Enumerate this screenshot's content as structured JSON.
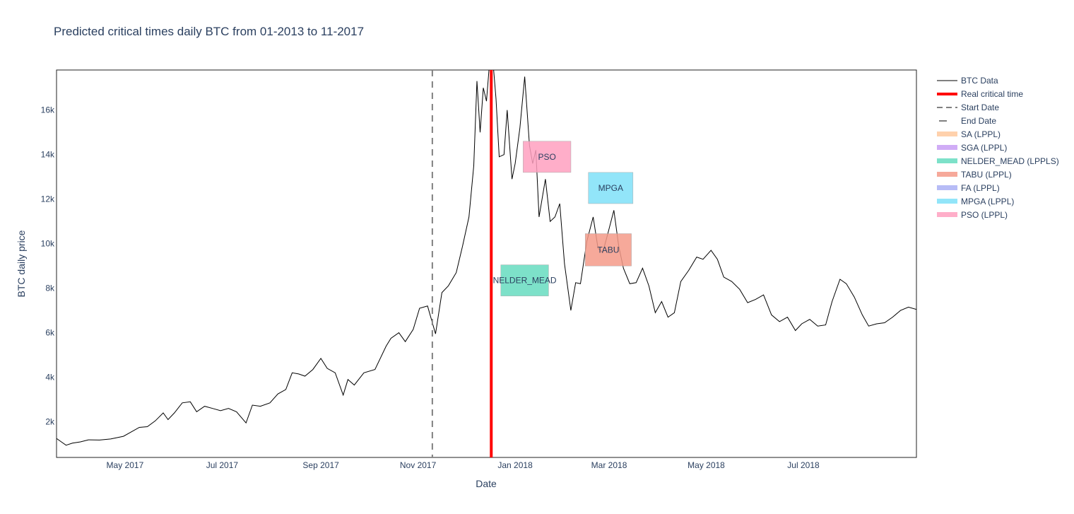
{
  "chart_data": {
    "type": "line",
    "title": "Predicted critical times daily BTC from 01-2013 to 11-2017",
    "xlabel": "Date",
    "ylabel": "BTC daily price",
    "xlim": [
      "2017-03-19",
      "2018-09-10"
    ],
    "ylim": [
      400,
      17800
    ],
    "x_ticks": [
      {
        "date": "2017-05-01",
        "label": "May 2017"
      },
      {
        "date": "2017-07-01",
        "label": "Jul 2017"
      },
      {
        "date": "2017-09-01",
        "label": "Sep 2017"
      },
      {
        "date": "2017-11-01",
        "label": "Nov 2017"
      },
      {
        "date": "2018-01-01",
        "label": "Jan 2018"
      },
      {
        "date": "2018-03-01",
        "label": "Mar 2018"
      },
      {
        "date": "2018-05-01",
        "label": "May 2018"
      },
      {
        "date": "2018-07-01",
        "label": "Jul 2018"
      }
    ],
    "y_ticks": [
      {
        "value": 2000,
        "label": "2k"
      },
      {
        "value": 4000,
        "label": "4k"
      },
      {
        "value": 6000,
        "label": "6k"
      },
      {
        "value": 8000,
        "label": "8k"
      },
      {
        "value": 10000,
        "label": "10k"
      },
      {
        "value": 12000,
        "label": "12k"
      },
      {
        "value": 14000,
        "label": "14k"
      },
      {
        "value": 16000,
        "label": "16k"
      }
    ],
    "series": [
      {
        "name": "BTC Data",
        "color": "#000000",
        "points": [
          [
            "2017-03-19",
            1250
          ],
          [
            "2017-03-22",
            1100
          ],
          [
            "2017-03-25",
            950
          ],
          [
            "2017-03-29",
            1040
          ],
          [
            "2017-04-03",
            1100
          ],
          [
            "2017-04-08",
            1190
          ],
          [
            "2017-04-15",
            1180
          ],
          [
            "2017-04-22",
            1230
          ],
          [
            "2017-04-30",
            1350
          ],
          [
            "2017-05-05",
            1550
          ],
          [
            "2017-05-10",
            1750
          ],
          [
            "2017-05-15",
            1780
          ],
          [
            "2017-05-20",
            2040
          ],
          [
            "2017-05-25",
            2400
          ],
          [
            "2017-05-28",
            2100
          ],
          [
            "2017-06-01",
            2400
          ],
          [
            "2017-06-06",
            2850
          ],
          [
            "2017-06-11",
            2900
          ],
          [
            "2017-06-15",
            2450
          ],
          [
            "2017-06-20",
            2700
          ],
          [
            "2017-06-25",
            2600
          ],
          [
            "2017-06-30",
            2500
          ],
          [
            "2017-07-05",
            2600
          ],
          [
            "2017-07-10",
            2450
          ],
          [
            "2017-07-16",
            1950
          ],
          [
            "2017-07-20",
            2750
          ],
          [
            "2017-07-25",
            2700
          ],
          [
            "2017-07-31",
            2850
          ],
          [
            "2017-08-05",
            3250
          ],
          [
            "2017-08-10",
            3450
          ],
          [
            "2017-08-14",
            4200
          ],
          [
            "2017-08-18",
            4150
          ],
          [
            "2017-08-22",
            4050
          ],
          [
            "2017-08-27",
            4350
          ],
          [
            "2017-09-01",
            4850
          ],
          [
            "2017-09-05",
            4400
          ],
          [
            "2017-09-10",
            4200
          ],
          [
            "2017-09-15",
            3200
          ],
          [
            "2017-09-18",
            3900
          ],
          [
            "2017-09-22",
            3650
          ],
          [
            "2017-09-28",
            4200
          ],
          [
            "2017-10-05",
            4350
          ],
          [
            "2017-10-12",
            5400
          ],
          [
            "2017-10-15",
            5750
          ],
          [
            "2017-10-20",
            6000
          ],
          [
            "2017-10-24",
            5600
          ],
          [
            "2017-10-29",
            6150
          ],
          [
            "2017-11-02",
            7100
          ],
          [
            "2017-11-07",
            7200
          ],
          [
            "2017-11-12",
            5950
          ],
          [
            "2017-11-16",
            7800
          ],
          [
            "2017-11-20",
            8100
          ],
          [
            "2017-11-25",
            8700
          ],
          [
            "2017-11-29",
            9900
          ],
          [
            "2017-12-03",
            11200
          ],
          [
            "2017-12-06",
            13500
          ],
          [
            "2017-12-08",
            17300
          ],
          [
            "2017-12-10",
            15000
          ],
          [
            "2017-12-12",
            17000
          ],
          [
            "2017-12-14",
            16400
          ],
          [
            "2017-12-17",
            19100
          ],
          [
            "2017-12-20",
            16500
          ],
          [
            "2017-12-22",
            13900
          ],
          [
            "2017-12-25",
            14000
          ],
          [
            "2017-12-27",
            16000
          ],
          [
            "2017-12-30",
            12900
          ],
          [
            "2018-01-01",
            13600
          ],
          [
            "2018-01-04",
            15200
          ],
          [
            "2018-01-07",
            17500
          ],
          [
            "2018-01-10",
            14400
          ],
          [
            "2018-01-12",
            13600
          ],
          [
            "2018-01-14",
            14200
          ],
          [
            "2018-01-16",
            11200
          ],
          [
            "2018-01-20",
            12900
          ],
          [
            "2018-01-23",
            11000
          ],
          [
            "2018-01-26",
            11200
          ],
          [
            "2018-01-29",
            11800
          ],
          [
            "2018-02-01",
            9100
          ],
          [
            "2018-02-05",
            7000
          ],
          [
            "2018-02-08",
            8250
          ],
          [
            "2018-02-11",
            8200
          ],
          [
            "2018-02-15",
            10100
          ],
          [
            "2018-02-19",
            11200
          ],
          [
            "2018-02-22",
            9800
          ],
          [
            "2018-02-25",
            9600
          ],
          [
            "2018-02-28",
            10400
          ],
          [
            "2018-03-04",
            11500
          ],
          [
            "2018-03-07",
            9900
          ],
          [
            "2018-03-10",
            8900
          ],
          [
            "2018-03-14",
            8200
          ],
          [
            "2018-03-18",
            8250
          ],
          [
            "2018-03-22",
            8900
          ],
          [
            "2018-03-26",
            8100
          ],
          [
            "2018-03-30",
            6900
          ],
          [
            "2018-04-03",
            7400
          ],
          [
            "2018-04-07",
            6700
          ],
          [
            "2018-04-11",
            6900
          ],
          [
            "2018-04-15",
            8300
          ],
          [
            "2018-04-20",
            8800
          ],
          [
            "2018-04-25",
            9400
          ],
          [
            "2018-04-29",
            9300
          ],
          [
            "2018-05-04",
            9700
          ],
          [
            "2018-05-08",
            9300
          ],
          [
            "2018-05-12",
            8500
          ],
          [
            "2018-05-17",
            8300
          ],
          [
            "2018-05-22",
            7950
          ],
          [
            "2018-05-27",
            7350
          ],
          [
            "2018-06-01",
            7500
          ],
          [
            "2018-06-06",
            7700
          ],
          [
            "2018-06-11",
            6800
          ],
          [
            "2018-06-16",
            6500
          ],
          [
            "2018-06-21",
            6700
          ],
          [
            "2018-06-26",
            6100
          ],
          [
            "2018-06-30",
            6400
          ],
          [
            "2018-07-05",
            6600
          ],
          [
            "2018-07-10",
            6300
          ],
          [
            "2018-07-15",
            6350
          ],
          [
            "2018-07-19",
            7400
          ],
          [
            "2018-07-24",
            8400
          ],
          [
            "2018-07-28",
            8200
          ],
          [
            "2018-08-02",
            7600
          ],
          [
            "2018-08-07",
            6800
          ],
          [
            "2018-08-11",
            6300
          ],
          [
            "2018-08-16",
            6400
          ],
          [
            "2018-08-21",
            6450
          ],
          [
            "2018-08-26",
            6700
          ],
          [
            "2018-08-31",
            7000
          ],
          [
            "2018-09-05",
            7150
          ],
          [
            "2018-09-10",
            7050
          ]
        ]
      }
    ],
    "lines": [
      {
        "name": "Real critical time",
        "date": "2017-12-17",
        "color": "#ff0000",
        "style": "solid"
      },
      {
        "name": "Start Date",
        "date": "2017-11-10",
        "color": "#808080",
        "style": "dash"
      }
    ],
    "boxes": [
      {
        "label": "PSO",
        "x0": "2018-01-06",
        "x1": "2018-02-05",
        "y0": 13200,
        "y1": 14600,
        "color": "#ffa0bf"
      },
      {
        "label": "MPGA",
        "x0": "2018-02-16",
        "x1": "2018-03-16",
        "y0": 11800,
        "y1": 13200,
        "color": "#7fe0f8"
      },
      {
        "label": "TABU",
        "x0": "2018-02-14",
        "x1": "2018-03-15",
        "y0": 9000,
        "y1": 10450,
        "color": "#f59a88"
      },
      {
        "label": "NELDER_MEAD",
        "x0": "2017-12-23",
        "x1": "2018-01-22",
        "y0": 7650,
        "y1": 9050,
        "color": "#66dcbf"
      }
    ],
    "legend": {
      "placement": "top-right",
      "items": [
        {
          "label": "BTC Data",
          "kind": "line",
          "color": "#000000"
        },
        {
          "label": "Real critical time",
          "kind": "line-thick",
          "color": "#ff0000"
        },
        {
          "label": "Start Date",
          "kind": "dash",
          "color": "#808080"
        },
        {
          "label": "End Date",
          "kind": "dash-short",
          "color": "#808080"
        },
        {
          "label": "SA (LPPL)",
          "kind": "box",
          "color": "#ffc99e"
        },
        {
          "label": "SGA (LPPL)",
          "kind": "box",
          "color": "#c89ef5"
        },
        {
          "label": "NELDER_MEAD (LPPLS)",
          "kind": "box",
          "color": "#66dcbf"
        },
        {
          "label": "TABU (LPPL)",
          "kind": "box",
          "color": "#f59a88"
        },
        {
          "label": "FA (LPPL)",
          "kind": "box",
          "color": "#aab0f5"
        },
        {
          "label": "MPGA (LPPL)",
          "kind": "box",
          "color": "#7fe0f8"
        },
        {
          "label": "PSO (LPPL)",
          "kind": "box",
          "color": "#ffa0bf"
        }
      ]
    },
    "grid": false
  }
}
